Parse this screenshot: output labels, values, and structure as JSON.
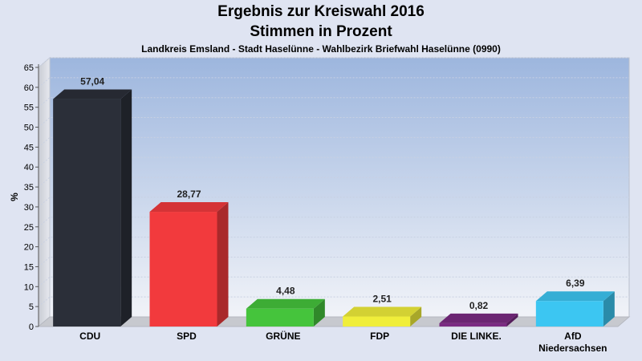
{
  "chart_data": {
    "type": "bar",
    "title": "Ergebnis zur Kreiswahl 2016",
    "subtitle_line": "Stimmen in Prozent",
    "subtitle": "Landkreis Emsland - Stadt Haselünne - Wahlbezirk Briefwahl Haselünne (0990)",
    "ylabel": "%",
    "xlabel": "",
    "ylim": [
      0,
      65
    ],
    "yticks": [
      0,
      5,
      10,
      15,
      20,
      25,
      30,
      35,
      40,
      45,
      50,
      55,
      60,
      65
    ],
    "categories": [
      [
        "CDU"
      ],
      [
        "SPD"
      ],
      [
        "GRÜNE"
      ],
      [
        "FDP"
      ],
      [
        "DIE LINKE."
      ],
      [
        "AfD",
        "Niedersachsen"
      ]
    ],
    "values": [
      57.04,
      28.77,
      4.48,
      2.51,
      0.82,
      6.39
    ],
    "value_labels": [
      "57,04",
      "28,77",
      "4,48",
      "2,51",
      "0,82",
      "6,39"
    ],
    "colors": [
      "#2b2f39",
      "#f23a3d",
      "#45c43c",
      "#f0ee3a",
      "#7a2a82",
      "#3cc6f2"
    ],
    "grid": true
  }
}
